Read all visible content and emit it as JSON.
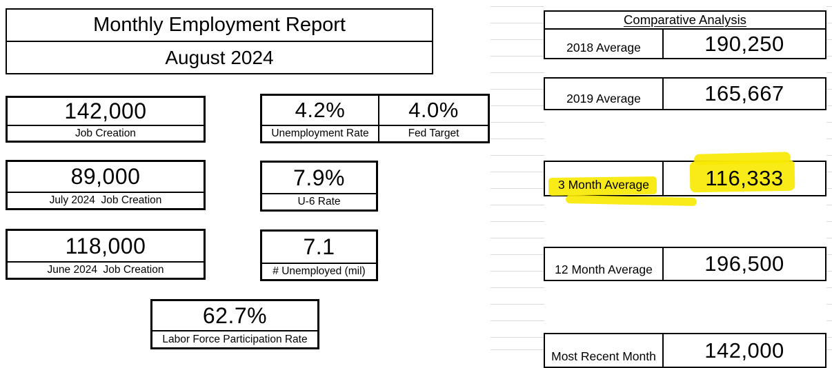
{
  "report": {
    "title": "Monthly Employment Report",
    "subtitle": "August 2024"
  },
  "stats": {
    "job_creation": {
      "value": "142,000",
      "label": "Job Creation"
    },
    "unemployment_rate": {
      "value": "4.2%",
      "label": "Unemployment Rate"
    },
    "fed_target": {
      "value": "4.0%",
      "label": "Fed Target"
    },
    "july_job_creation": {
      "value": "89,000",
      "label": "July 2024  Job Creation"
    },
    "u6_rate": {
      "value": "7.9%",
      "label": "U-6 Rate"
    },
    "june_job_creation": {
      "value": "118,000",
      "label": "June 2024  Job Creation"
    },
    "unemployed_millions": {
      "value": "7.1",
      "label": "# Unemployed (mil)"
    },
    "labor_force_participation": {
      "value": "62.7%",
      "label": "Labor Force Participation Rate"
    }
  },
  "comparative": {
    "header": "Comparative Analysis",
    "rows": [
      {
        "label": "2018 Average",
        "value": "190,250",
        "highlighted": false
      },
      {
        "label": "2019 Average",
        "value": "165,667",
        "highlighted": false
      },
      {
        "label": "3 Month Average",
        "value": "116,333",
        "highlighted": true
      },
      {
        "label": "12 Month Average",
        "value": "196,500",
        "highlighted": false
      },
      {
        "label": "Most Recent Month",
        "value": "142,000",
        "highlighted": false
      }
    ]
  },
  "colors": {
    "highlight_yellow": "#f8e904",
    "border": "#000000",
    "gridline": "#d9d9d9",
    "background": "#ffffff"
  }
}
